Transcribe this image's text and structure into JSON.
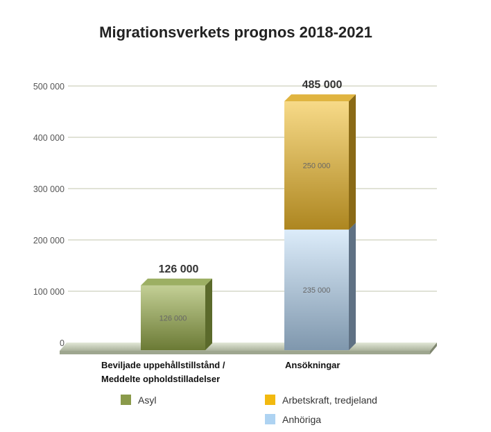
{
  "chart_data": {
    "type": "bar",
    "stacked": true,
    "title": "Migrationsverkets prognos 2018-2021",
    "categories": [
      "Beviljade uppehållstillstånd / Meddelte opholdstilladelser",
      "Ansökningar"
    ],
    "category_lines": [
      [
        "Beviljade uppehållstillstånd /",
        "Meddelte opholdstilladelser"
      ],
      [
        "Ansökningar"
      ]
    ],
    "series": [
      {
        "name": "Asyl",
        "color": "#8a9a4a",
        "values": [
          126000,
          null
        ],
        "labels": [
          "126 000",
          null
        ]
      },
      {
        "name": "Anhöriga",
        "color": "#aed3f2",
        "values": [
          null,
          235000
        ],
        "labels": [
          null,
          "235 000"
        ]
      },
      {
        "name": "Arbetskraft, tredjeland",
        "color": "#f2b90f",
        "values": [
          null,
          250000
        ],
        "labels": [
          null,
          "250 000"
        ]
      }
    ],
    "totals": [
      "126 000",
      "485 000"
    ],
    "ylim": [
      0,
      500000
    ],
    "yticks": [
      0,
      100000,
      200000,
      300000,
      400000,
      500000
    ],
    "ytick_labels": [
      "0",
      "100 000",
      "200 000",
      "300 000",
      "400 000",
      "500 000"
    ],
    "grid": true,
    "legend_placement": "bottom",
    "legend": [
      {
        "name": "Asyl",
        "color": "#8a9a4a"
      },
      {
        "name": "Arbetskraft, tredjeland",
        "color": "#f2b90f"
      },
      {
        "name": "Anhöriga",
        "color": "#aed3f2"
      }
    ]
  }
}
